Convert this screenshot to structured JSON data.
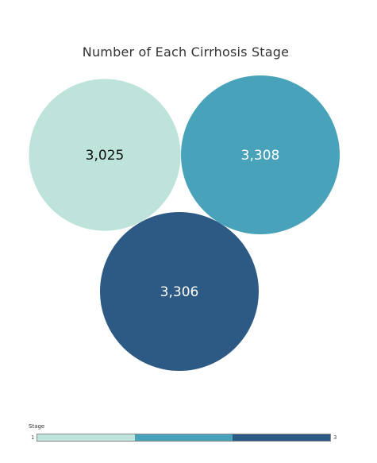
{
  "chart_data": {
    "type": "bubble",
    "title": "Number of Each Cirrhosis Stage",
    "categories": [
      "1",
      "2",
      "3"
    ],
    "values": [
      3025,
      3308,
      3306
    ],
    "labels": [
      "3,025",
      "3,308",
      "3,306"
    ],
    "colors": [
      "#bde3da",
      "#48a3ba",
      "#2d5985"
    ],
    "label_colors": [
      "#111111",
      "#ffffff",
      "#ffffff"
    ],
    "legend": {
      "title": "Stage",
      "min_label": "1",
      "max_label": "3",
      "placement": "bottom-left"
    }
  }
}
